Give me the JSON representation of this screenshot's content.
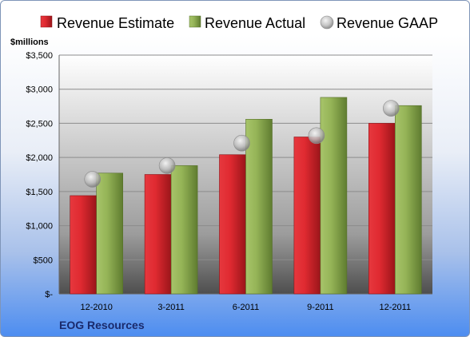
{
  "chart_data": {
    "type": "bar",
    "categories": [
      "12-2010",
      "3-2011",
      "6-2011",
      "9-2011",
      "12-2011"
    ],
    "series": [
      {
        "name": "Revenue Estimate",
        "kind": "bar",
        "color": "#cc1f26",
        "values": [
          1440,
          1750,
          2040,
          2300,
          2500
        ]
      },
      {
        "name": "Revenue Actual",
        "kind": "bar",
        "color": "#8aab4a",
        "values": [
          1770,
          1880,
          2560,
          2880,
          2760
        ]
      },
      {
        "name": "Revenue GAAP",
        "kind": "marker",
        "color": "#b4b4b4",
        "values": [
          1680,
          1880,
          2210,
          2320,
          2720
        ]
      }
    ],
    "ylabel": "$millions",
    "ylim": [
      0,
      3500
    ],
    "yticks": [
      0,
      500,
      1000,
      1500,
      2000,
      2500,
      3000,
      3500
    ],
    "ytick_labels": [
      "$-",
      "$500",
      "$1,000",
      "$1,500",
      "$2,000",
      "$2,500",
      "$3,000",
      "$3,500"
    ],
    "grid": true,
    "legend": "top",
    "company": "EOG Resources"
  }
}
